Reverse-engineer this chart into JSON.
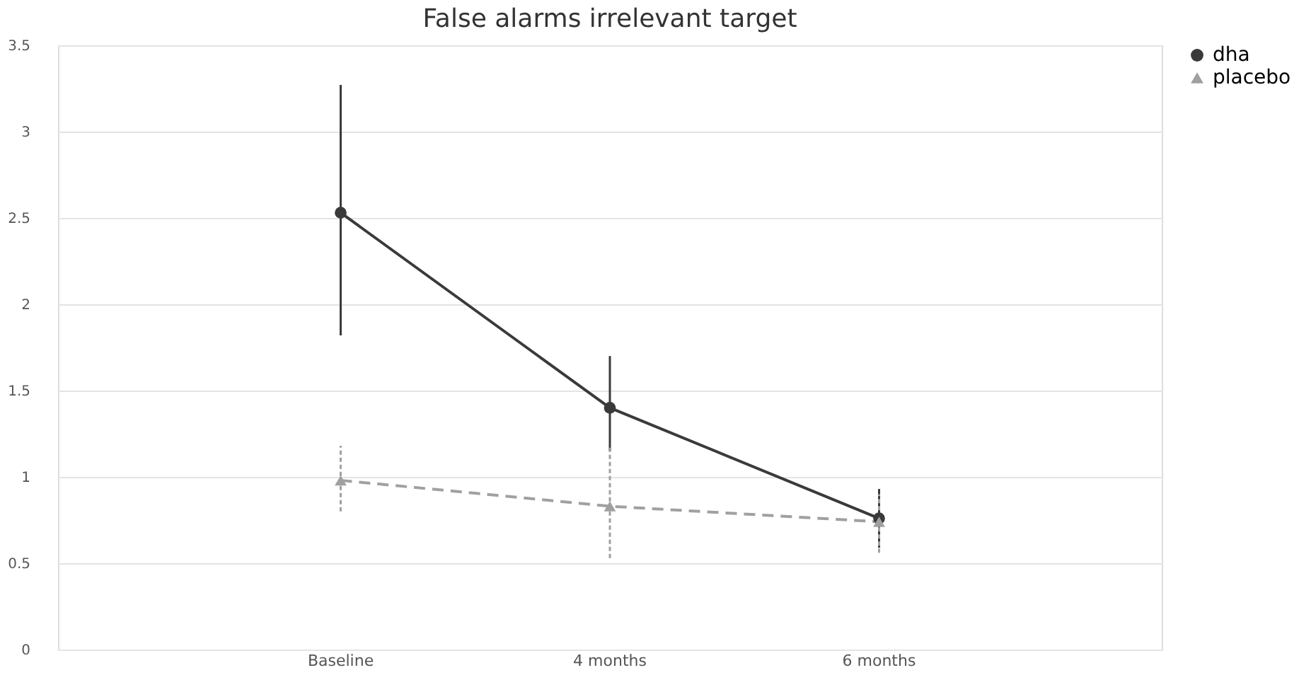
{
  "chart_data": {
    "type": "line",
    "title": "False alarms irrelevant target",
    "categories": [
      "Baseline",
      "4 months",
      "6 months"
    ],
    "series": [
      {
        "name": "dha",
        "color": "#3a3a3a",
        "values": [
          2.53,
          1.4,
          0.76
        ],
        "errors": [
          [
            1.82,
            3.27
          ],
          [
            1.15,
            1.7
          ],
          [
            0.59,
            0.93
          ]
        ],
        "marker": "circle",
        "line_style": "solid"
      },
      {
        "name": "placebo",
        "color": "#a0a0a0",
        "values": [
          0.98,
          0.83,
          0.74
        ],
        "errors": [
          [
            0.8,
            1.18
          ],
          [
            0.53,
            1.18
          ],
          [
            0.56,
            0.9
          ]
        ],
        "marker": "triangle",
        "line_style": "dashed"
      }
    ],
    "ylim": [
      0,
      3.5
    ],
    "yticks": [
      0,
      0.5,
      1,
      1.5,
      2,
      2.5,
      3,
      3.5
    ],
    "grid": "y",
    "legend": "right"
  }
}
